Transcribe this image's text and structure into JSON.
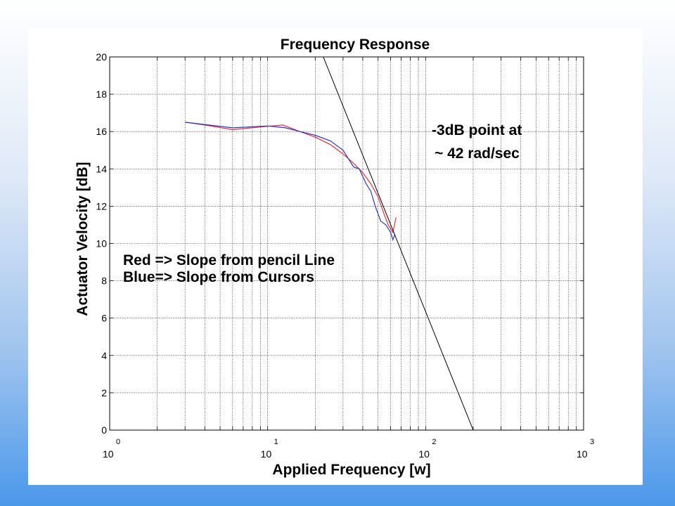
{
  "chart_data": {
    "type": "line",
    "title": "Frequency Response",
    "xlabel": "Applied Frequency [w]",
    "ylabel": "Actuator Velocity  [dB]",
    "x_scale": "log",
    "xlim": [
      1,
      1000
    ],
    "ylim": [
      0,
      20
    ],
    "grid": true,
    "x_tick_labels": [
      {
        "base": "10",
        "exp": "0",
        "value": 1
      },
      {
        "base": "10",
        "exp": "1",
        "value": 10
      },
      {
        "base": "10",
        "exp": "2",
        "value": 100
      },
      {
        "base": "10",
        "exp": "3",
        "value": 1000
      }
    ],
    "y_ticks": [
      0,
      2,
      4,
      6,
      8,
      10,
      12,
      14,
      16,
      18,
      20
    ],
    "series": [
      {
        "color": "#e8303a",
        "x": [
          3.0,
          4.0,
          6.0,
          9.0,
          12.5,
          16.0,
          20.0,
          25.0,
          30.0,
          35.0,
          40.0,
          45.0,
          50.0,
          55.0,
          58.0,
          60.0,
          62.0,
          65.0
        ],
        "y": [
          16.5,
          16.35,
          16.1,
          16.25,
          16.35,
          16.0,
          15.7,
          15.3,
          14.8,
          14.3,
          13.8,
          13.2,
          12.5,
          11.5,
          11.0,
          10.8,
          10.6,
          11.4
        ]
      },
      {
        "color": "#2a37c8",
        "x": [
          3.0,
          6.0,
          10.0,
          13.0,
          16.0,
          20.0,
          25.0,
          30.0,
          35.0,
          38.0,
          42.0,
          45.0,
          48.0,
          52.0,
          56.0,
          60.0,
          62.0,
          64.0
        ],
        "y": [
          16.5,
          16.2,
          16.3,
          16.2,
          16.0,
          15.8,
          15.5,
          15.0,
          14.1,
          14.0,
          13.2,
          12.8,
          12.0,
          11.2,
          11.0,
          10.6,
          10.2,
          10.5
        ]
      },
      {
        "color": "#000000",
        "x": [
          22.5,
          200
        ],
        "y": [
          20,
          0
        ]
      }
    ],
    "annotations": [
      {
        "lines": [
          "-3dB point at",
          "~ 42 rad/sec"
        ]
      },
      {
        "lines": [
          "Red => Slope from pencil Line",
          "Blue=> Slope from Cursors"
        ]
      }
    ]
  }
}
